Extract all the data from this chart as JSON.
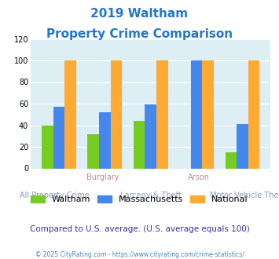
{
  "title_line1": "2019 Waltham",
  "title_line2": "Property Crime Comparison",
  "title_color": "#2277cc",
  "categories": [
    "All Property Crime",
    "Burglary",
    "Larceny & Theft",
    "Arson",
    "Motor Vehicle Theft"
  ],
  "cat_top_labels": [
    "",
    "Burglary",
    "",
    "Arson",
    ""
  ],
  "cat_bot_labels": [
    "All Property Crime",
    "",
    "Larceny & Theft",
    "",
    "Motor Vehicle Theft"
  ],
  "top_label_color": "#bb88aa",
  "bot_label_color": "#8899bb",
  "waltham": [
    40,
    32,
    44,
    0,
    15
  ],
  "massachusetts": [
    57,
    52,
    59,
    100,
    41
  ],
  "national": [
    100,
    100,
    100,
    100,
    100
  ],
  "waltham_color": "#77cc22",
  "mass_color": "#4488ee",
  "national_color": "#ffaa33",
  "bg_color": "#ddeef5",
  "ylim": [
    0,
    120
  ],
  "yticks": [
    0,
    20,
    40,
    60,
    80,
    100,
    120
  ],
  "grid_color": "#ffffff",
  "note": "Compared to U.S. average. (U.S. average equals 100)",
  "note_color": "#333399",
  "footer": "© 2025 CityRating.com - https://www.cityrating.com/crime-statistics/",
  "footer_color": "#4488bb",
  "legend_labels": [
    "Waltham",
    "Massachusetts",
    "National"
  ],
  "legend_text_color": "#333333"
}
